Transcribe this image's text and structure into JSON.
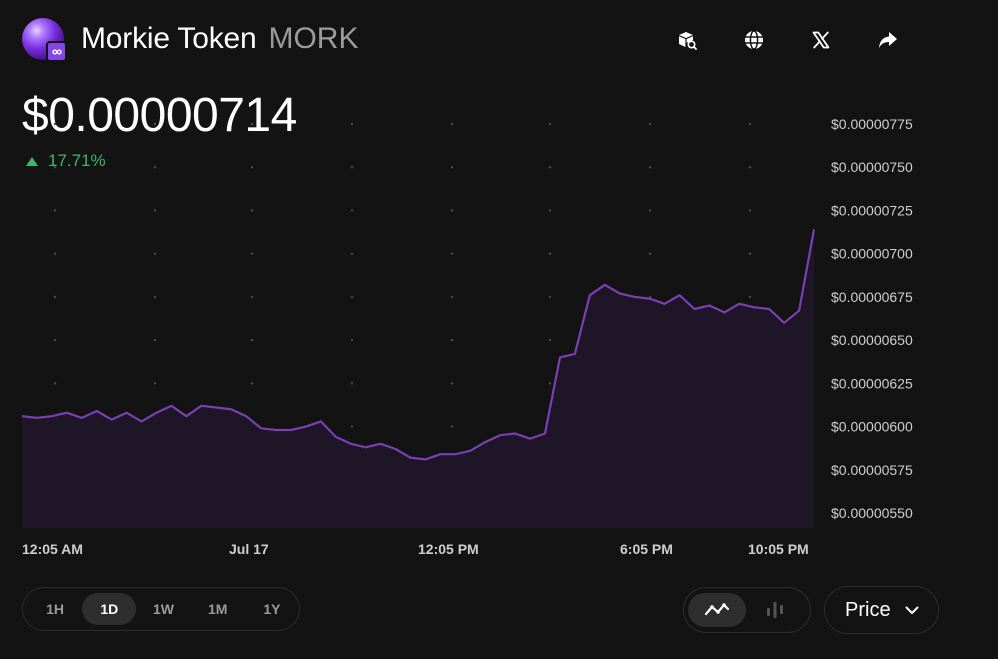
{
  "header": {
    "name": "Morkie Token",
    "symbol": "MORK",
    "actions": [
      {
        "name": "explorer-icon"
      },
      {
        "name": "website-icon"
      },
      {
        "name": "x-twitter-icon"
      },
      {
        "name": "share-icon"
      }
    ]
  },
  "price": {
    "value": "$0.00000714",
    "change": "17.71%",
    "change_color": "#40b66b"
  },
  "colors": {
    "line": "#7b3fb3",
    "area": "#1e1526",
    "grid_dot": "#4a4a4a",
    "positive": "#40b66b"
  },
  "chart_data": {
    "type": "area",
    "y_labels": [
      "$0.00000775",
      "$0.00000750",
      "$0.00000725",
      "$0.00000700",
      "$0.00000675",
      "$0.00000650",
      "$0.00000625",
      "$0.00000600",
      "$0.00000575",
      "$0.00000550"
    ],
    "x_labels": [
      "12:05 AM",
      "Jul 17",
      "12:05 PM",
      "6:05 PM",
      "10:05 PM"
    ],
    "ylim": [
      5.4e-06,
      7.8e-06
    ],
    "values": [
      6.06e-06,
      6.05e-06,
      6.06e-06,
      6.08e-06,
      6.05e-06,
      6.09e-06,
      6.04e-06,
      6.08e-06,
      6.03e-06,
      6.08e-06,
      6.12e-06,
      6.06e-06,
      6.12e-06,
      6.11e-06,
      6.1e-06,
      6.06e-06,
      5.99e-06,
      5.98e-06,
      5.98e-06,
      6e-06,
      6.03e-06,
      5.94e-06,
      5.9e-06,
      5.88e-06,
      5.9e-06,
      5.87e-06,
      5.82e-06,
      5.81e-06,
      5.84e-06,
      5.84e-06,
      5.86e-06,
      5.91e-06,
      5.95e-06,
      5.96e-06,
      5.93e-06,
      5.96e-06,
      6.4e-06,
      6.42e-06,
      6.76e-06,
      6.82e-06,
      6.77e-06,
      6.75e-06,
      6.74e-06,
      6.71e-06,
      6.76e-06,
      6.68e-06,
      6.7e-06,
      6.66e-06,
      6.71e-06,
      6.69e-06,
      6.68e-06,
      6.6e-06,
      6.67e-06,
      7.14e-06
    ]
  },
  "timeframes": [
    {
      "label": "1H"
    },
    {
      "label": "1D",
      "active": true
    },
    {
      "label": "1W"
    },
    {
      "label": "1M"
    },
    {
      "label": "1Y"
    }
  ],
  "chart_type": {
    "options": [
      {
        "name": "line-chart-icon",
        "active": true
      },
      {
        "name": "candlestick-chart-icon",
        "active": false
      }
    ]
  },
  "metric_select": {
    "value": "Price"
  }
}
